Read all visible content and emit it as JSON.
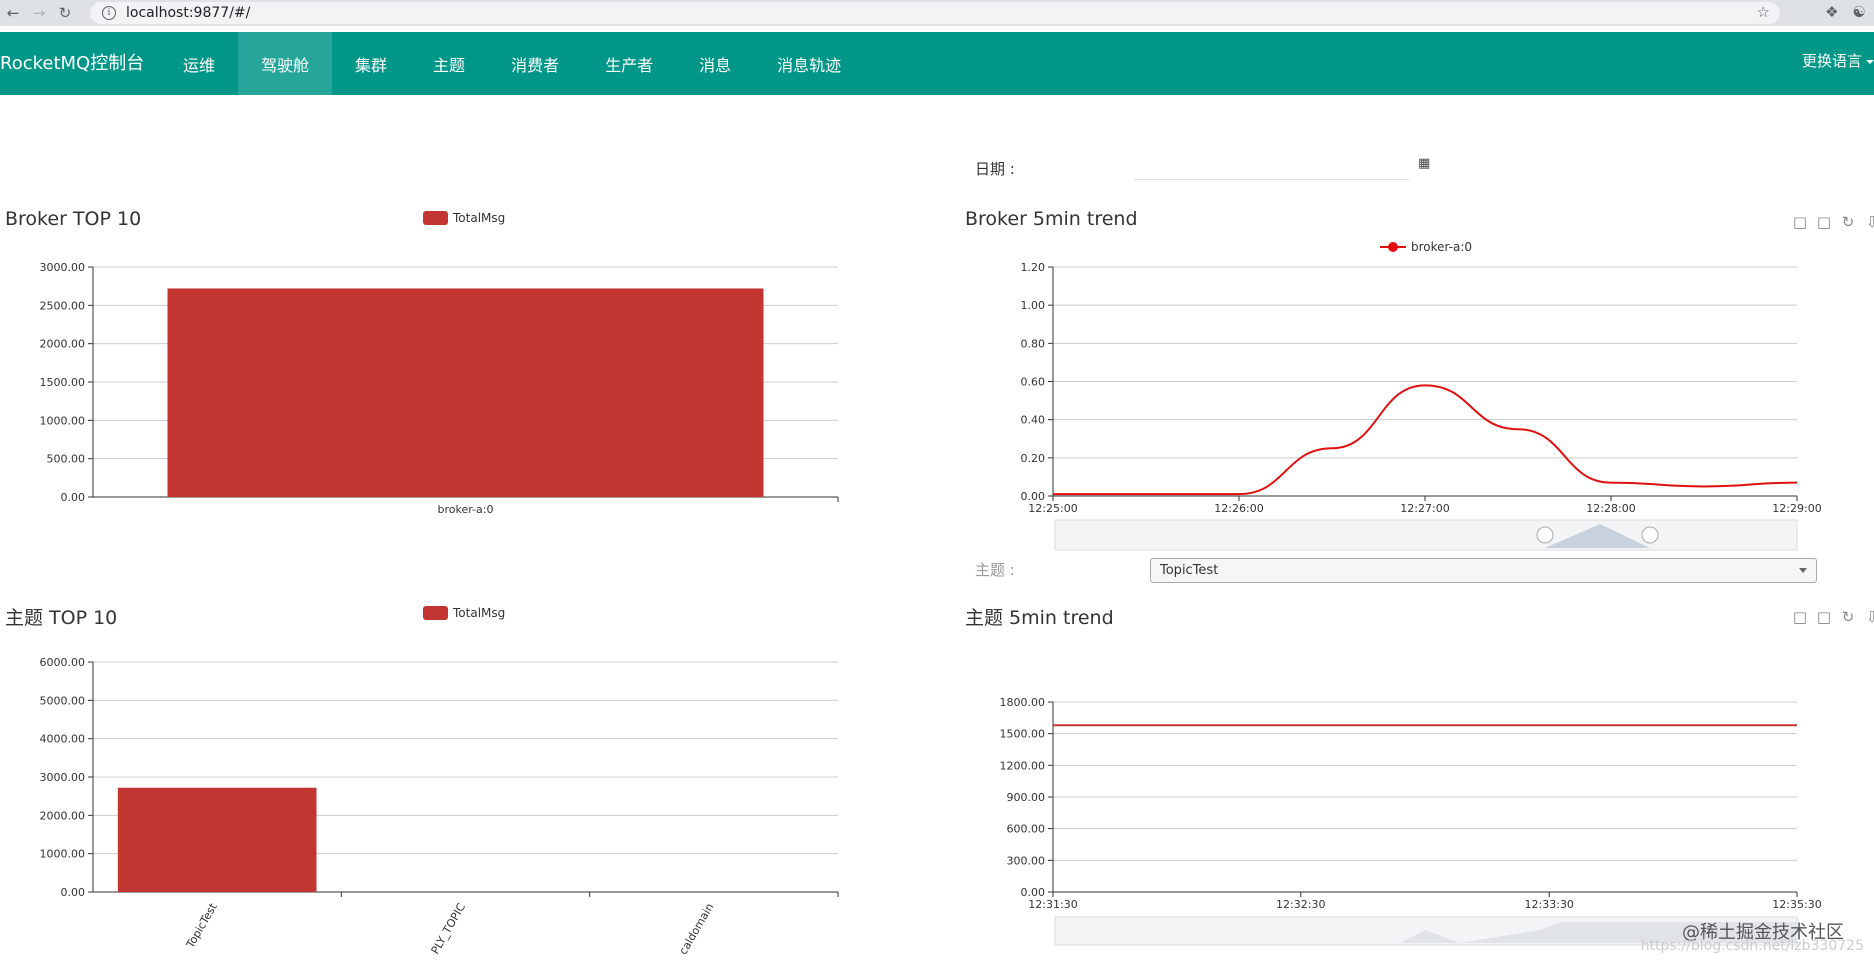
{
  "browser": {
    "url": "localhost:9877/#/"
  },
  "navbar": {
    "brand": "RocketMQ控制台",
    "items": [
      {
        "label": "运维",
        "active": false
      },
      {
        "label": "驾驶舱",
        "active": true
      },
      {
        "label": "集群",
        "active": false
      },
      {
        "label": "主题",
        "active": false
      },
      {
        "label": "消费者",
        "active": false
      },
      {
        "label": "生产者",
        "active": false
      },
      {
        "label": "消息",
        "active": false
      },
      {
        "label": "消息轨迹",
        "active": false
      }
    ],
    "language": "更换语言"
  },
  "filters": {
    "date_label": "日期 :",
    "date_value": "",
    "topic_label": "主题 :",
    "topic_value": "TopicTest"
  },
  "panels": {
    "broker_top": {
      "title": "Broker TOP 10",
      "legend": "TotalMsg"
    },
    "broker_trend": {
      "title": "Broker 5min trend",
      "legend": "broker-a:0"
    },
    "topic_top": {
      "title": "主题 TOP 10",
      "legend": "TotalMsg"
    },
    "topic_trend": {
      "title": "主题 5min trend"
    }
  },
  "watermark": {
    "text": "@稀土掘金技术社区",
    "url": "https://blog.csdn.net/lzb330725"
  },
  "chart_data": [
    {
      "id": "broker_top",
      "type": "bar",
      "categories": [
        "broker-a:0"
      ],
      "series": [
        {
          "name": "TotalMsg",
          "values": [
            2720
          ]
        }
      ],
      "y_ticks": [
        "0.00",
        "500.00",
        "1000.00",
        "1500.00",
        "2000.00",
        "2500.00",
        "3000.00"
      ],
      "ylim": [
        0,
        3000
      ],
      "color": "#c23531"
    },
    {
      "id": "broker_trend",
      "type": "line",
      "x_ticks": [
        "12:25:00",
        "12:26:00",
        "12:27:00",
        "12:28:00",
        "12:29:00"
      ],
      "x_minutes": [
        0,
        0.5,
        1,
        1.5,
        2,
        2.5,
        3,
        3.5,
        4
      ],
      "series": [
        {
          "name": "broker-a:0",
          "values": [
            0.01,
            0.01,
            0.01,
            0.25,
            0.58,
            0.35,
            0.07,
            0.05,
            0.07
          ]
        }
      ],
      "y_ticks": [
        "0.00",
        "0.20",
        "0.40",
        "0.60",
        "0.80",
        "1.00",
        "1.20"
      ],
      "ylim": [
        0,
        1.2
      ],
      "color": "#e01010"
    },
    {
      "id": "topic_top",
      "type": "bar",
      "categories": [
        "TopicTest",
        "PLY_TOPIC",
        "caldomain"
      ],
      "series": [
        {
          "name": "TotalMsg",
          "values": [
            2720,
            0,
            0
          ]
        }
      ],
      "y_ticks": [
        "0.00",
        "1000.00",
        "2000.00",
        "3000.00",
        "4000.00",
        "5000.00",
        "6000.00"
      ],
      "ylim": [
        0,
        6000
      ],
      "color": "#c23531"
    },
    {
      "id": "topic_trend",
      "type": "line",
      "x_ticks": [
        "12:31:30",
        "12:32:30",
        "12:33:30",
        "12:35:30"
      ],
      "series": [
        {
          "values": [
            1580,
            1580
          ]
        }
      ],
      "y_ticks": [
        "0.00",
        "300.00",
        "600.00",
        "900.00",
        "1200.00",
        "1500.00",
        "1800.00"
      ],
      "ylim": [
        0,
        1800
      ],
      "color": "#c23531"
    }
  ]
}
